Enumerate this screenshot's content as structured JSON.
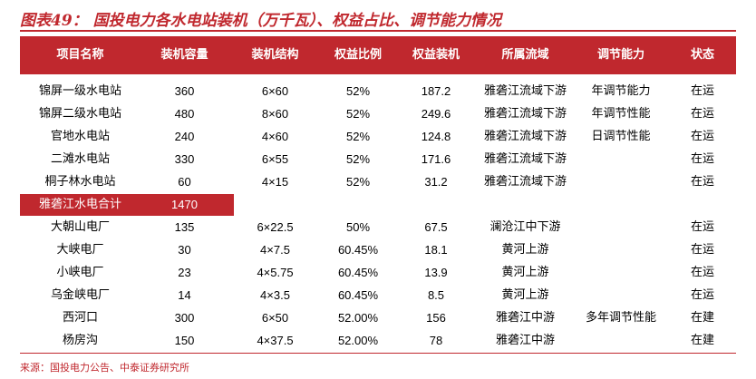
{
  "header": {
    "title": "图表49：  国投电力各水电站装机（万千瓦）、权益占比、调节能力情况"
  },
  "table": {
    "columns": [
      "项目名称",
      "装机容量",
      "装机结构",
      "权益比例",
      "权益装机",
      "所属流域",
      "调节能力",
      "状态"
    ],
    "rows": [
      {
        "name": "锦屏一级水电站",
        "capacity": "360",
        "structure": "6×60",
        "ratio": "52%",
        "equity": "187.2",
        "basin": "雅砻江流域下游",
        "regulation": "年调节能力",
        "status": "在运"
      },
      {
        "name": "锦屏二级水电站",
        "capacity": "480",
        "structure": "8×60",
        "ratio": "52%",
        "equity": "249.6",
        "basin": "雅砻江流域下游",
        "regulation": "年调节性能",
        "status": "在运"
      },
      {
        "name": "官地水电站",
        "capacity": "240",
        "structure": "4×60",
        "ratio": "52%",
        "equity": "124.8",
        "basin": "雅砻江流域下游",
        "regulation": "日调节性能",
        "status": "在运"
      },
      {
        "name": "二滩水电站",
        "capacity": "330",
        "structure": "6×55",
        "ratio": "52%",
        "equity": "171.6",
        "basin": "雅砻江流域下游",
        "status": "在运"
      },
      {
        "name": "桐子林水电站",
        "capacity": "60",
        "structure": "4×15",
        "ratio": "52%",
        "equity": "31.2",
        "basin": "雅砻江流域下游",
        "status": "在运"
      },
      {
        "name": "雅砻江水电合计",
        "capacity": "1470",
        "subtotal": true
      },
      {
        "name": "大朝山电厂",
        "capacity": "135",
        "structure": "6×22.5",
        "ratio": "50%",
        "equity": "67.5",
        "basin": "澜沧江中下游",
        "status": "在运"
      },
      {
        "name": "大峡电厂",
        "capacity": "30",
        "structure": "4×7.5",
        "ratio": "60.45%",
        "equity": "18.1",
        "basin": "黄河上游",
        "status": "在运"
      },
      {
        "name": "小峡电厂",
        "capacity": "23",
        "structure": "4×5.75",
        "ratio": "60.45%",
        "equity": "13.9",
        "basin": "黄河上游",
        "status": "在运"
      },
      {
        "name": "乌金峡电厂",
        "capacity": "14",
        "structure": "4×3.5",
        "ratio": "60.45%",
        "equity": "8.5",
        "basin": "黄河上游",
        "status": "在运"
      },
      {
        "name": "西河口",
        "capacity": "300",
        "structure": "6×50",
        "ratio": "52.00%",
        "equity": "156",
        "basin": "雅砻江中游",
        "regulation": "多年调节性能",
        "status": "在建"
      },
      {
        "name": "杨房沟",
        "capacity": "150",
        "structure": "4×37.5",
        "ratio": "52.00%",
        "equity": "78",
        "basin": "雅砻江中游",
        "status": "在建"
      }
    ]
  },
  "footer": {
    "source": "来源：国投电力公告、中泰证券研究所"
  }
}
